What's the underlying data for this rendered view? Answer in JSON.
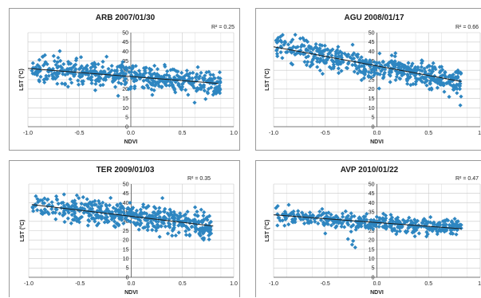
{
  "chart_data": [
    {
      "type": "scatter",
      "title": "ARB 2007/01/30",
      "xlabel": "NDVI",
      "ylabel": "LST (°C)",
      "xlim": [
        -1.0,
        1.0
      ],
      "ylim": [
        0,
        50
      ],
      "xticks": [
        "-1.0",
        "-0.5",
        "0.0",
        "0.5",
        "1.0"
      ],
      "yticks": [
        "0",
        "5",
        "10",
        "15",
        "20",
        "25",
        "30",
        "35",
        "40",
        "45",
        "50"
      ],
      "r2_label": "R² = 0.25",
      "trend": {
        "x": [
          -1.0,
          0.85
        ],
        "y": [
          31.0,
          23.0
        ]
      },
      "cloud": {
        "x_range": [
          -0.97,
          0.87
        ],
        "y_spread": 3.2,
        "n": 520
      },
      "color": "#2e86c1",
      "grid": true
    },
    {
      "type": "scatter",
      "title": "AGU 2008/01/17",
      "xlabel": "NDVI",
      "ylabel": "LST (°C)",
      "xlim": [
        -1.0,
        1.0
      ],
      "ylim": [
        0,
        50
      ],
      "xticks": [
        "-1.0",
        "-0.5",
        "0.0",
        "0.5",
        "1."
      ],
      "yticks": [
        "0",
        "5",
        "10",
        "15",
        "20",
        "25",
        "30",
        "35",
        "40",
        "45",
        "50"
      ],
      "r2_label": "R² = 0.66",
      "trend": {
        "x": [
          -1.0,
          0.82
        ],
        "y": [
          42.5,
          24.0
        ]
      },
      "cloud": {
        "x_range": [
          -0.98,
          0.82
        ],
        "y_spread": 3.6,
        "n": 520
      },
      "color": "#2e86c1",
      "grid": true
    },
    {
      "type": "scatter",
      "title": "TER 2009/01/03",
      "xlabel": "NDVI",
      "ylabel": "LST (°C)",
      "xlim": [
        -1.0,
        1.0
      ],
      "ylim": [
        0,
        50
      ],
      "xticks": [
        "-1.0",
        "-0.5",
        "0.0",
        "0.5",
        "1.0"
      ],
      "yticks": [
        "0",
        "5",
        "10",
        "15",
        "20",
        "25",
        "30",
        "35",
        "40",
        "45",
        "50"
      ],
      "r2_label": "R² = 0.35",
      "trend": {
        "x": [
          -0.97,
          0.8
        ],
        "y": [
          39.0,
          27.5
        ]
      },
      "cloud": {
        "x_range": [
          -0.97,
          0.78
        ],
        "y_spread": 3.4,
        "n": 520
      },
      "color": "#2e86c1",
      "grid": true
    },
    {
      "type": "scatter",
      "title": "AVP 2010/01/22",
      "xlabel": "NDVI",
      "ylabel": "LST (°C)",
      "xlim": [
        -1.0,
        1.0
      ],
      "ylim": [
        0,
        50
      ],
      "xticks": [
        "-1.0",
        "-0.5",
        "0.0",
        "0.5",
        "1."
      ],
      "yticks": [
        "0",
        "5",
        "10",
        "15",
        "20",
        "25",
        "30",
        "35",
        "40",
        "45",
        "50"
      ],
      "r2_label": "R² = 0.47",
      "trend": {
        "x": [
          -1.0,
          0.82
        ],
        "y": [
          33.5,
          26.0
        ]
      },
      "cloud": {
        "x_range": [
          -0.98,
          0.82
        ],
        "y_spread": 2.3,
        "n": 420
      },
      "extra_points": [
        [
          -0.24,
          17.5
        ],
        [
          -0.21,
          16.0
        ],
        [
          -0.28,
          20.5
        ],
        [
          -0.23,
          19.5
        ],
        [
          -0.5,
          23.5
        ],
        [
          -0.8,
          32.8
        ],
        [
          -0.25,
          24.5
        ]
      ],
      "color": "#2e86c1",
      "grid": true
    }
  ]
}
